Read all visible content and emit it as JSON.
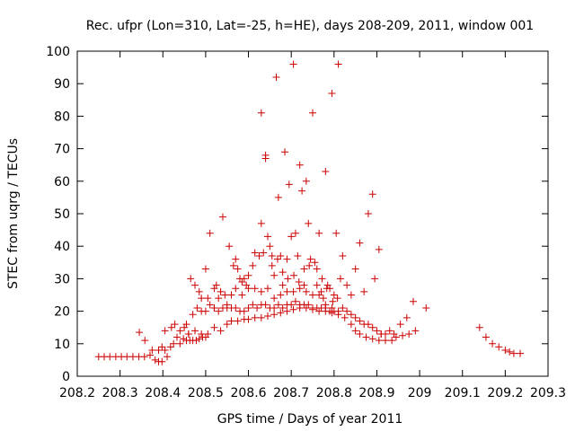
{
  "chart_data": {
    "type": "scatter",
    "title": "Rec. ufpr (Lon=310, Lat=-25, h=HE), days 208-209, 2011, window 001",
    "xlabel": "GPS time / Days of year 2011",
    "ylabel": "STEC from uqrg / TECUs",
    "xlim": [
      208.2,
      209.3
    ],
    "ylim": [
      0,
      100
    ],
    "xticks": [
      "208.2",
      "208.3",
      "208.4",
      "208.5",
      "208.6",
      "208.7",
      "208.8",
      "208.9",
      "209",
      "209.1",
      "209.2",
      "209.3"
    ],
    "yticks": [
      "0",
      "10",
      "20",
      "30",
      "40",
      "50",
      "60",
      "70",
      "80",
      "90",
      "100"
    ],
    "marker": "plus",
    "color": "#cc0000",
    "grid": false,
    "legend": "none",
    "points": [
      [
        208.25,
        6
      ],
      [
        208.263,
        6
      ],
      [
        208.276,
        6
      ],
      [
        208.29,
        6
      ],
      [
        208.303,
        6
      ],
      [
        208.316,
        6
      ],
      [
        208.33,
        6
      ],
      [
        208.344,
        6
      ],
      [
        208.357,
        6
      ],
      [
        208.37,
        6.5
      ],
      [
        208.345,
        13.5
      ],
      [
        208.358,
        11
      ],
      [
        208.375,
        8
      ],
      [
        208.382,
        5
      ],
      [
        208.39,
        4.5
      ],
      [
        208.398,
        4.5
      ],
      [
        208.405,
        8
      ],
      [
        208.41,
        6
      ],
      [
        208.418,
        9
      ],
      [
        208.425,
        10
      ],
      [
        208.433,
        12
      ],
      [
        208.44,
        10
      ],
      [
        208.448,
        11.5
      ],
      [
        208.455,
        11
      ],
      [
        208.463,
        11
      ],
      [
        208.47,
        11
      ],
      [
        208.478,
        11
      ],
      [
        208.485,
        11.5
      ],
      [
        208.493,
        12
      ],
      [
        208.5,
        12
      ],
      [
        208.39,
        8
      ],
      [
        208.398,
        9
      ],
      [
        208.405,
        14
      ],
      [
        208.42,
        15
      ],
      [
        208.428,
        16
      ],
      [
        208.44,
        14
      ],
      [
        208.45,
        15
      ],
      [
        208.46,
        13
      ],
      [
        208.475,
        14
      ],
      [
        208.49,
        13
      ],
      [
        208.505,
        13
      ],
      [
        208.52,
        15
      ],
      [
        208.535,
        14
      ],
      [
        208.55,
        16
      ],
      [
        208.56,
        17
      ],
      [
        208.575,
        17
      ],
      [
        208.59,
        17.5
      ],
      [
        208.6,
        17.5
      ],
      [
        208.615,
        18
      ],
      [
        208.63,
        18
      ],
      [
        208.645,
        18.5
      ],
      [
        208.66,
        19
      ],
      [
        208.675,
        19.5
      ],
      [
        208.69,
        20
      ],
      [
        208.705,
        20.5
      ],
      [
        208.72,
        21
      ],
      [
        208.735,
        21
      ],
      [
        208.75,
        20.5
      ],
      [
        208.765,
        20
      ],
      [
        208.78,
        20
      ],
      [
        208.795,
        19.5
      ],
      [
        208.81,
        19
      ],
      [
        208.825,
        18
      ],
      [
        208.84,
        16
      ],
      [
        208.85,
        14
      ],
      [
        208.86,
        13
      ],
      [
        208.875,
        12
      ],
      [
        208.89,
        11.5
      ],
      [
        208.905,
        11
      ],
      [
        208.92,
        11
      ],
      [
        208.935,
        11
      ],
      [
        208.945,
        12
      ],
      [
        208.96,
        12.5
      ],
      [
        208.975,
        13
      ],
      [
        208.99,
        14
      ],
      [
        208.455,
        16
      ],
      [
        208.46,
        13
      ],
      [
        208.47,
        19
      ],
      [
        208.48,
        21
      ],
      [
        208.49,
        20
      ],
      [
        208.5,
        20
      ],
      [
        208.51,
        22
      ],
      [
        208.52,
        21
      ],
      [
        208.53,
        20
      ],
      [
        208.54,
        21
      ],
      [
        208.55,
        21
      ],
      [
        208.56,
        21
      ],
      [
        208.57,
        21
      ],
      [
        208.58,
        20
      ],
      [
        208.59,
        20
      ],
      [
        208.6,
        21
      ],
      [
        208.61,
        22
      ],
      [
        208.62,
        21
      ],
      [
        208.63,
        22
      ],
      [
        208.64,
        22
      ],
      [
        208.65,
        21
      ],
      [
        208.66,
        21
      ],
      [
        208.67,
        22
      ],
      [
        208.68,
        21
      ],
      [
        208.69,
        22
      ],
      [
        208.7,
        22
      ],
      [
        208.71,
        23
      ],
      [
        208.72,
        22
      ],
      [
        208.73,
        22
      ],
      [
        208.74,
        22
      ],
      [
        208.75,
        21
      ],
      [
        208.76,
        21
      ],
      [
        208.77,
        21
      ],
      [
        208.78,
        21
      ],
      [
        208.79,
        20
      ],
      [
        208.8,
        20
      ],
      [
        208.81,
        20
      ],
      [
        208.82,
        21
      ],
      [
        208.83,
        20
      ],
      [
        208.84,
        19
      ],
      [
        208.85,
        18
      ],
      [
        208.86,
        17
      ],
      [
        208.87,
        16
      ],
      [
        208.88,
        16
      ],
      [
        208.89,
        15
      ],
      [
        208.9,
        14
      ],
      [
        208.91,
        13
      ],
      [
        208.92,
        13
      ],
      [
        208.93,
        14
      ],
      [
        208.94,
        13
      ],
      [
        208.955,
        16
      ],
      [
        208.97,
        18
      ],
      [
        208.985,
        23
      ],
      [
        209.015,
        21
      ],
      [
        208.465,
        30
      ],
      [
        208.475,
        28
      ],
      [
        208.485,
        26
      ],
      [
        208.49,
        24
      ],
      [
        208.5,
        33
      ],
      [
        208.505,
        24
      ],
      [
        208.51,
        44
      ],
      [
        208.52,
        27
      ],
      [
        208.525,
        28
      ],
      [
        208.535,
        26
      ],
      [
        208.54,
        49
      ],
      [
        208.55,
        22
      ],
      [
        208.555,
        40
      ],
      [
        208.565,
        34
      ],
      [
        208.57,
        36
      ],
      [
        208.575,
        33
      ],
      [
        208.58,
        30
      ],
      [
        208.585,
        29
      ],
      [
        208.59,
        30
      ],
      [
        208.595,
        28
      ],
      [
        208.6,
        31
      ],
      [
        208.61,
        34
      ],
      [
        208.615,
        38
      ],
      [
        208.625,
        37
      ],
      [
        208.63,
        47
      ],
      [
        208.635,
        38
      ],
      [
        208.64,
        67
      ],
      [
        208.645,
        43
      ],
      [
        208.65,
        40
      ],
      [
        208.655,
        34
      ],
      [
        208.66,
        31
      ],
      [
        208.665,
        92
      ],
      [
        208.67,
        55
      ],
      [
        208.675,
        37
      ],
      [
        208.68,
        32
      ],
      [
        208.685,
        69
      ],
      [
        208.69,
        36
      ],
      [
        208.695,
        59
      ],
      [
        208.7,
        43
      ],
      [
        208.705,
        96
      ],
      [
        208.71,
        44
      ],
      [
        208.715,
        37
      ],
      [
        208.72,
        65
      ],
      [
        208.725,
        57
      ],
      [
        208.73,
        33
      ],
      [
        208.735,
        60
      ],
      [
        208.74,
        47
      ],
      [
        208.745,
        36
      ],
      [
        208.75,
        81
      ],
      [
        208.755,
        35
      ],
      [
        208.76,
        28
      ],
      [
        208.765,
        44
      ],
      [
        208.77,
        26
      ],
      [
        208.775,
        24
      ],
      [
        208.78,
        63
      ],
      [
        208.785,
        28
      ],
      [
        208.79,
        27
      ],
      [
        208.795,
        87
      ],
      [
        208.8,
        25
      ],
      [
        208.805,
        44
      ],
      [
        208.81,
        96
      ],
      [
        208.815,
        30
      ],
      [
        208.82,
        37
      ],
      [
        208.83,
        28
      ],
      [
        208.84,
        25
      ],
      [
        208.85,
        33
      ],
      [
        208.86,
        41
      ],
      [
        208.87,
        26
      ],
      [
        208.88,
        50
      ],
      [
        208.89,
        56
      ],
      [
        208.895,
        30
      ],
      [
        208.905,
        39
      ],
      [
        208.91,
        13
      ],
      [
        208.63,
        81
      ],
      [
        208.64,
        68
      ],
      [
        208.655,
        37
      ],
      [
        208.668,
        36
      ],
      [
        208.68,
        28
      ],
      [
        208.692,
        30
      ],
      [
        208.706,
        31
      ],
      [
        208.718,
        29
      ],
      [
        208.73,
        28
      ],
      [
        208.742,
        34
      ],
      [
        208.76,
        33
      ],
      [
        208.772,
        30
      ],
      [
        208.783,
        27
      ],
      [
        208.797,
        23
      ],
      [
        208.808,
        24
      ],
      [
        208.52,
        21
      ],
      [
        208.53,
        24
      ],
      [
        208.545,
        25
      ],
      [
        208.56,
        25
      ],
      [
        208.57,
        27
      ],
      [
        208.585,
        25
      ],
      [
        208.6,
        27
      ],
      [
        208.615,
        27
      ],
      [
        208.63,
        26
      ],
      [
        208.645,
        27
      ],
      [
        208.66,
        24
      ],
      [
        208.675,
        25
      ],
      [
        208.69,
        26
      ],
      [
        208.705,
        26
      ],
      [
        208.72,
        27
      ],
      [
        208.735,
        26
      ],
      [
        208.75,
        25
      ],
      [
        208.765,
        25
      ],
      [
        208.78,
        22
      ],
      [
        208.795,
        21
      ],
      [
        209.14,
        15
      ],
      [
        209.155,
        12
      ],
      [
        209.17,
        10
      ],
      [
        209.185,
        9
      ],
      [
        209.2,
        8
      ],
      [
        209.21,
        7.5
      ],
      [
        209.22,
        7
      ],
      [
        209.235,
        7
      ]
    ]
  }
}
